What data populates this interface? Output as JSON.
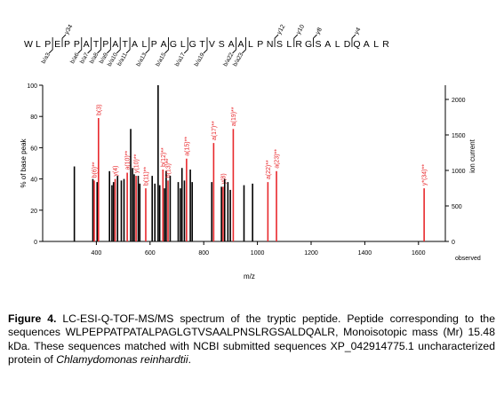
{
  "chart_data": {
    "type": "bar",
    "title": "",
    "xlabel": "m/z",
    "ylabel_left": "% of base peak",
    "ylabel_right": "ion current",
    "right_axis_footer": "observed",
    "xlim": [
      200,
      1700
    ],
    "ylim_left": [
      0,
      100
    ],
    "ylim_right": [
      0,
      2200
    ],
    "x_ticks": [
      400,
      600,
      800,
      1000,
      1200,
      1400,
      1600
    ],
    "y_left_ticks": [
      0,
      20,
      40,
      60,
      80,
      100
    ],
    "y_right_ticks": [
      0,
      500,
      1000,
      1500,
      2000
    ],
    "colors": {
      "matched": "#e8282c",
      "unmatched": "#000000",
      "axis": "#000000"
    },
    "peptide": {
      "sequence": [
        "W",
        "L",
        "P",
        "E",
        "P",
        "P",
        "A",
        "T",
        "P",
        "A",
        "T",
        "A",
        "L",
        "P",
        "A",
        "G",
        "L",
        "G",
        "T",
        "V",
        "S",
        "A",
        "A",
        "L",
        "P",
        "N",
        "S",
        "L",
        "R",
        "G",
        "S",
        "A",
        "L",
        "D",
        "Q",
        "A",
        "L",
        "R"
      ],
      "top_fragments": [
        {
          "label": "y34",
          "after_residue": 4
        },
        {
          "label": "y12",
          "after_residue": 26
        },
        {
          "label": "y10",
          "after_residue": 28
        },
        {
          "label": "y8",
          "after_residue": 30
        },
        {
          "label": "y4",
          "after_residue": 34
        }
      ],
      "bottom_fragments": [
        {
          "label": "b/a3",
          "after_residue": 3
        },
        {
          "label": "b/a6",
          "after_residue": 6
        },
        {
          "label": "b/a7",
          "after_residue": 7
        },
        {
          "label": "b/a8",
          "after_residue": 8
        },
        {
          "label": "b/a9",
          "after_residue": 9
        },
        {
          "label": "b/a10",
          "after_residue": 10
        },
        {
          "label": "b/a11",
          "after_residue": 11
        },
        {
          "label": "b/a13",
          "after_residue": 13
        },
        {
          "label": "b/a15",
          "after_residue": 15
        },
        {
          "label": "b/a17",
          "after_residue": 17
        },
        {
          "label": "b/a19",
          "after_residue": 19
        },
        {
          "label": "b/a22",
          "after_residue": 22
        },
        {
          "label": "b/a23",
          "after_residue": 23
        }
      ]
    },
    "peaks": [
      {
        "mz": 318,
        "pct": 48,
        "matched": false
      },
      {
        "mz": 387,
        "pct": 40,
        "matched": false
      },
      {
        "mz": 392,
        "pct": 39,
        "matched": true,
        "label": "b(6)**"
      },
      {
        "mz": 403,
        "pct": 38,
        "matched": false
      },
      {
        "mz": 408,
        "pct": 79,
        "matched": true,
        "label": "b(3)"
      },
      {
        "mz": 449,
        "pct": 45,
        "matched": false
      },
      {
        "mz": 458,
        "pct": 36,
        "matched": false
      },
      {
        "mz": 464,
        "pct": 38,
        "matched": false
      },
      {
        "mz": 470,
        "pct": 40,
        "matched": true,
        "label": "y(4)"
      },
      {
        "mz": 479,
        "pct": 42,
        "matched": false
      },
      {
        "mz": 493,
        "pct": 39,
        "matched": false
      },
      {
        "mz": 503,
        "pct": 40,
        "matched": false
      },
      {
        "mz": 515,
        "pct": 44,
        "matched": true,
        "label": "a(10)**"
      },
      {
        "mz": 528,
        "pct": 72,
        "matched": false
      },
      {
        "mz": 535,
        "pct": 47,
        "matched": false
      },
      {
        "mz": 541,
        "pct": 43,
        "matched": false
      },
      {
        "mz": 548,
        "pct": 42,
        "matched": true,
        "label": "y(10)**"
      },
      {
        "mz": 556,
        "pct": 42,
        "matched": false
      },
      {
        "mz": 562,
        "pct": 37,
        "matched": false
      },
      {
        "mz": 584,
        "pct": 34,
        "matched": true,
        "label": "b(11)**"
      },
      {
        "mz": 608,
        "pct": 42,
        "matched": false
      },
      {
        "mz": 618,
        "pct": 37,
        "matched": false
      },
      {
        "mz": 630,
        "pct": 100,
        "matched": false
      },
      {
        "mz": 636,
        "pct": 36,
        "matched": false
      },
      {
        "mz": 648,
        "pct": 46,
        "matched": true,
        "label": "b(12)**"
      },
      {
        "mz": 654,
        "pct": 34,
        "matched": false
      },
      {
        "mz": 660,
        "pct": 45,
        "matched": false
      },
      {
        "mz": 667,
        "pct": 39,
        "matched": true,
        "label": "b(13)**"
      },
      {
        "mz": 675,
        "pct": 42,
        "matched": false
      },
      {
        "mz": 705,
        "pct": 38,
        "matched": false
      },
      {
        "mz": 713,
        "pct": 34,
        "matched": false
      },
      {
        "mz": 719,
        "pct": 47,
        "matched": false
      },
      {
        "mz": 728,
        "pct": 39,
        "matched": false
      },
      {
        "mz": 736,
        "pct": 53,
        "matched": true,
        "label": "a(15)**"
      },
      {
        "mz": 750,
        "pct": 46,
        "matched": false
      },
      {
        "mz": 757,
        "pct": 38,
        "matched": false
      },
      {
        "mz": 830,
        "pct": 38,
        "matched": false
      },
      {
        "mz": 837,
        "pct": 63,
        "matched": true,
        "label": "a(17)**"
      },
      {
        "mz": 866,
        "pct": 35,
        "matched": false
      },
      {
        "mz": 872,
        "pct": 35,
        "matched": true,
        "label": "y(8)"
      },
      {
        "mz": 878,
        "pct": 40,
        "matched": false
      },
      {
        "mz": 890,
        "pct": 38,
        "matched": false
      },
      {
        "mz": 899,
        "pct": 33,
        "matched": false
      },
      {
        "mz": 910,
        "pct": 72,
        "matched": true,
        "label": "a(19)**"
      },
      {
        "mz": 950,
        "pct": 36,
        "matched": false
      },
      {
        "mz": 982,
        "pct": 37,
        "matched": false
      },
      {
        "mz": 1039,
        "pct": 38,
        "matched": true,
        "label": "a(22)**"
      },
      {
        "mz": 1071,
        "pct": 45,
        "matched": true,
        "label": "a(23)**"
      },
      {
        "mz": 1621,
        "pct": 34,
        "matched": true,
        "label": "y*(34)**"
      }
    ]
  },
  "caption": {
    "label": "Figure 4.",
    "text_before_italic": " LC-ESI-Q-TOF-MS/MS spectrum of the tryptic peptide. Peptide corresponding to the sequences WLPEPPATPATALPAGLGTVSAALPNSLRGSALDQALR, Monoisotopic mass (Mr) 15.48 kDa. These sequences matched with NCBI submitted sequences XP_042914775.1 uncharacterized protein of ",
    "italic": "Chlamydomonas reinhardtii",
    "text_after_italic": "."
  }
}
